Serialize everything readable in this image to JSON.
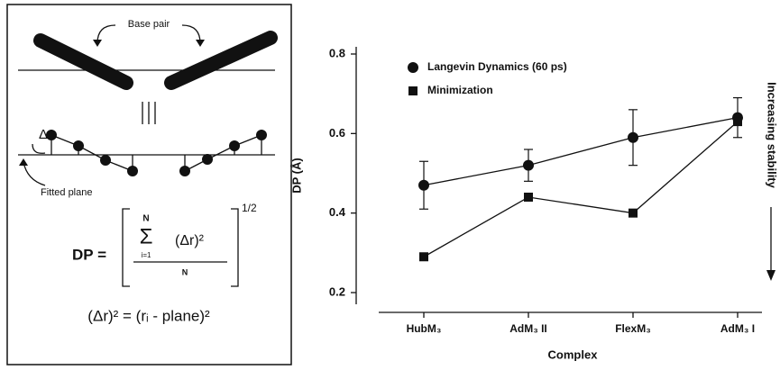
{
  "chart_data": {
    "type": "line",
    "ylabel": "DP (Å)",
    "xlabel": "Complex",
    "side_label": "Increasing stability",
    "categories": [
      "HubM₃",
      "AdM₃ II",
      "FlexM₃",
      "AdM₃ I"
    ],
    "series": [
      {
        "name": "Langevin Dynamics (60 ps)",
        "color": "#111111",
        "marker": "circle",
        "values": [
          0.47,
          0.52,
          0.59,
          0.64
        ],
        "errors": [
          0.06,
          0.04,
          0.07,
          0.05
        ]
      },
      {
        "name": "Minimization",
        "color": "#111111",
        "marker": "square",
        "values": [
          0.29,
          0.44,
          0.4,
          0.63
        ]
      }
    ],
    "ylim": [
      0.2,
      0.8
    ],
    "yticks": [
      0.2,
      0.4,
      0.6,
      0.8
    ],
    "legend": "upper-left",
    "grid": false
  },
  "diagram": {
    "base_pair": "Base pair",
    "delta_r": "Δr",
    "fitted_plane": "Fitted plane",
    "formula": {
      "lhs": "DP =",
      "sigma": "Σ",
      "upper": "N",
      "lower": "i=1",
      "term": "(Δr)²",
      "denominator": "N",
      "exponent": "1/2",
      "definition": "(Δr)² = (rᵢ - plane)²"
    }
  }
}
